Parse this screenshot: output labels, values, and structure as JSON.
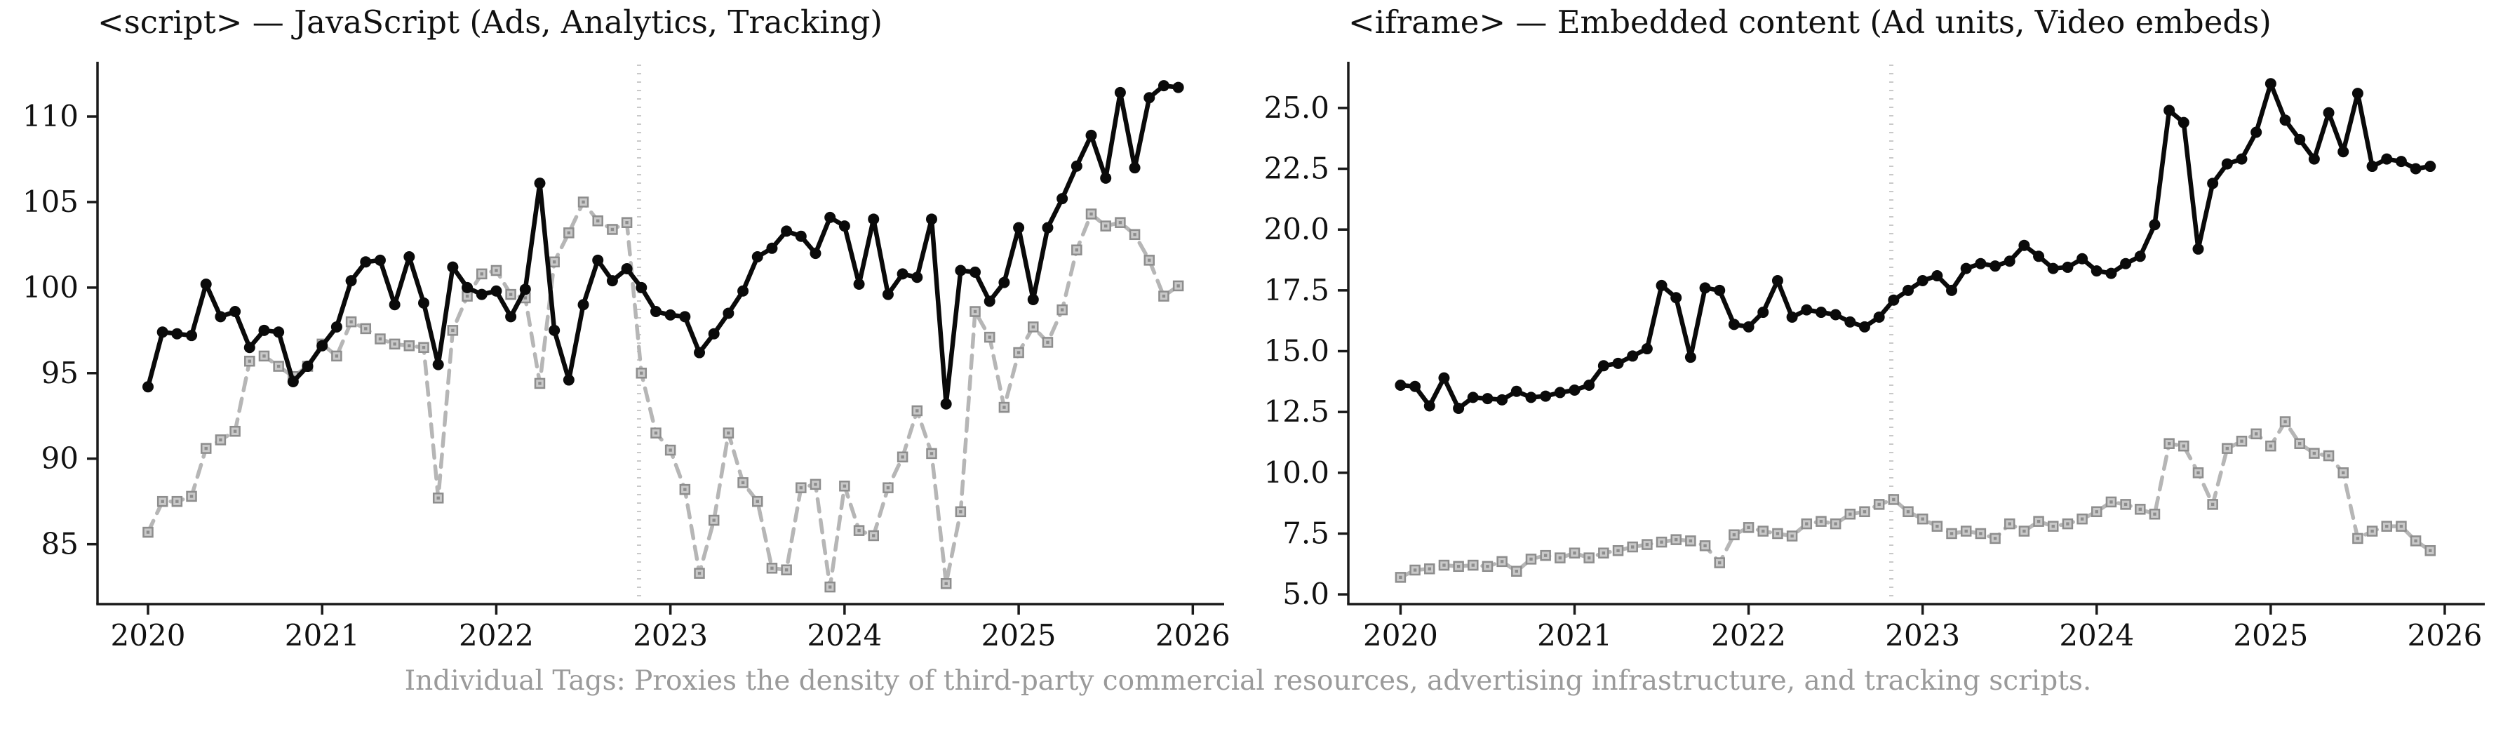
{
  "figure": {
    "caption": "Individual Tags: Proxies the density of third-party commercial resources, advertising infrastructure, and tracking scripts.",
    "background": "#ffffff"
  },
  "colors": {
    "axis": "#1a1a1a",
    "tick_label": "#111111",
    "title": "#111111",
    "caption": "#9a9a9a",
    "solid_series": "#0a0a0a",
    "dashed_series_line": "#b6b6b6",
    "dashed_marker_fill": "#c9c9c9",
    "dashed_marker_edge": "#8d8d8d",
    "vline": "#c9c9c9"
  },
  "chart_data": [
    {
      "id": "script-tag-chart",
      "type": "line",
      "title": "<script> — JavaScript (Ads, Analytics, Tracking)",
      "x_start_year": 2020.0,
      "x_step_years": 0.0833333,
      "xlim": [
        2019.71,
        2026.18
      ],
      "ylim": [
        81.5,
        113.2
      ],
      "grid": false,
      "legend": "none",
      "vline_x": 2022.82,
      "x_axis": {
        "tick_values": [
          2020,
          2021,
          2022,
          2023,
          2024,
          2025,
          2026
        ],
        "tick_labels": [
          "2020",
          "2021",
          "2022",
          "2023",
          "2024",
          "2025",
          "2026"
        ]
      },
      "y_axis": {
        "tick_values": [
          85,
          90,
          95,
          100,
          105,
          110
        ],
        "tick_labels": [
          "85",
          "90",
          "95",
          "100",
          "105",
          "110"
        ]
      },
      "series": [
        {
          "name": "solid-black",
          "line": "solid",
          "marker": "circle",
          "values": [
            94.2,
            97.4,
            97.3,
            97.2,
            100.2,
            98.3,
            98.6,
            96.5,
            97.5,
            97.4,
            94.5,
            95.4,
            96.6,
            97.7,
            100.4,
            101.5,
            101.6,
            99.0,
            101.8,
            99.1,
            95.5,
            101.2,
            100.0,
            99.6,
            99.8,
            98.3,
            99.9,
            106.1,
            97.5,
            94.6,
            99.0,
            101.6,
            100.4,
            101.1,
            100.0,
            98.6,
            98.4,
            98.3,
            96.2,
            97.3,
            98.5,
            99.8,
            101.8,
            102.3,
            103.3,
            103.0,
            102.0,
            104.1,
            103.6,
            100.2,
            104.0,
            99.6,
            100.8,
            100.6,
            104.0,
            93.2,
            101.0,
            100.9,
            99.2,
            100.3,
            103.5,
            99.3,
            103.5,
            105.2,
            107.1,
            108.9,
            106.4,
            111.4,
            107.0,
            111.1,
            111.8,
            111.7
          ]
        },
        {
          "name": "dashed-gray",
          "line": "dashed",
          "marker": "square",
          "values": [
            85.7,
            87.5,
            87.5,
            87.8,
            90.6,
            91.1,
            91.6,
            95.7,
            96.0,
            95.4,
            94.8,
            95.4,
            96.7,
            96.0,
            98.0,
            97.6,
            97.0,
            96.7,
            96.6,
            96.5,
            87.7,
            97.5,
            99.5,
            100.8,
            101.0,
            99.6,
            99.4,
            94.4,
            101.5,
            103.2,
            105.0,
            103.9,
            103.4,
            103.8,
            95.0,
            91.5,
            90.5,
            88.2,
            83.3,
            86.4,
            91.5,
            88.6,
            87.5,
            83.6,
            83.5,
            88.3,
            88.5,
            82.5,
            88.4,
            85.8,
            85.5,
            88.3,
            90.1,
            92.8,
            90.3,
            82.7,
            86.9,
            98.6,
            97.1,
            93.0,
            96.2,
            97.7,
            96.8,
            98.7,
            102.2,
            104.3,
            103.6,
            103.8,
            103.1,
            101.6,
            99.5,
            100.1
          ]
        }
      ]
    },
    {
      "id": "iframe-tag-chart",
      "type": "line",
      "title": "<iframe> — Embedded content (Ad units, Video embeds)",
      "x_start_year": 2020.0,
      "x_step_years": 0.0833333,
      "xlim": [
        2019.7,
        2026.23
      ],
      "ylim": [
        4.6,
        26.9
      ],
      "grid": false,
      "legend": "none",
      "vline_x": 2022.82,
      "x_axis": {
        "tick_values": [
          2020,
          2021,
          2022,
          2023,
          2024,
          2025,
          2026
        ],
        "tick_labels": [
          "2020",
          "2021",
          "2022",
          "2023",
          "2024",
          "2025",
          "2026"
        ]
      },
      "y_axis": {
        "tick_values": [
          5.0,
          7.5,
          10.0,
          12.5,
          15.0,
          17.5,
          20.0,
          22.5,
          25.0
        ],
        "tick_labels": [
          "5.0",
          "7.5",
          "10.0",
          "12.5",
          "15.0",
          "17.5",
          "20.0",
          "22.5",
          "25.0"
        ]
      },
      "series": [
        {
          "name": "solid-black",
          "line": "solid",
          "marker": "circle",
          "values": [
            13.6,
            13.55,
            12.75,
            13.9,
            12.65,
            13.1,
            13.05,
            13.0,
            13.35,
            13.1,
            13.15,
            13.3,
            13.4,
            13.6,
            14.4,
            14.5,
            14.8,
            15.1,
            17.7,
            17.2,
            14.75,
            17.6,
            17.5,
            16.1,
            16.0,
            16.6,
            17.9,
            16.4,
            16.7,
            16.6,
            16.5,
            16.2,
            16.0,
            16.4,
            17.1,
            17.5,
            17.9,
            18.1,
            17.5,
            18.4,
            18.6,
            18.5,
            18.7,
            19.35,
            18.9,
            18.4,
            18.45,
            18.8,
            18.3,
            18.2,
            18.6,
            18.9,
            20.2,
            24.9,
            24.4,
            19.2,
            21.9,
            22.7,
            22.9,
            24.0,
            26.0,
            24.5,
            23.7,
            22.9,
            24.8,
            23.2,
            25.6,
            22.6,
            22.9,
            22.8,
            22.5,
            22.6
          ]
        },
        {
          "name": "dashed-gray",
          "line": "dashed",
          "marker": "square",
          "values": [
            5.7,
            6.0,
            6.05,
            6.2,
            6.15,
            6.2,
            6.15,
            6.35,
            5.95,
            6.45,
            6.6,
            6.5,
            6.7,
            6.5,
            6.7,
            6.8,
            6.95,
            7.05,
            7.15,
            7.25,
            7.2,
            7.0,
            6.3,
            7.45,
            7.75,
            7.6,
            7.5,
            7.4,
            7.9,
            8.0,
            7.9,
            8.3,
            8.4,
            8.7,
            8.9,
            8.4,
            8.1,
            7.8,
            7.5,
            7.6,
            7.5,
            7.3,
            7.9,
            7.6,
            8.0,
            7.8,
            7.9,
            8.1,
            8.4,
            8.8,
            8.7,
            8.5,
            8.3,
            11.2,
            11.1,
            10.0,
            8.7,
            11.0,
            11.3,
            11.6,
            11.1,
            12.1,
            11.2,
            10.8,
            10.7,
            10.0,
            7.3,
            7.6,
            7.8,
            7.8,
            7.2,
            6.8
          ]
        }
      ]
    }
  ]
}
